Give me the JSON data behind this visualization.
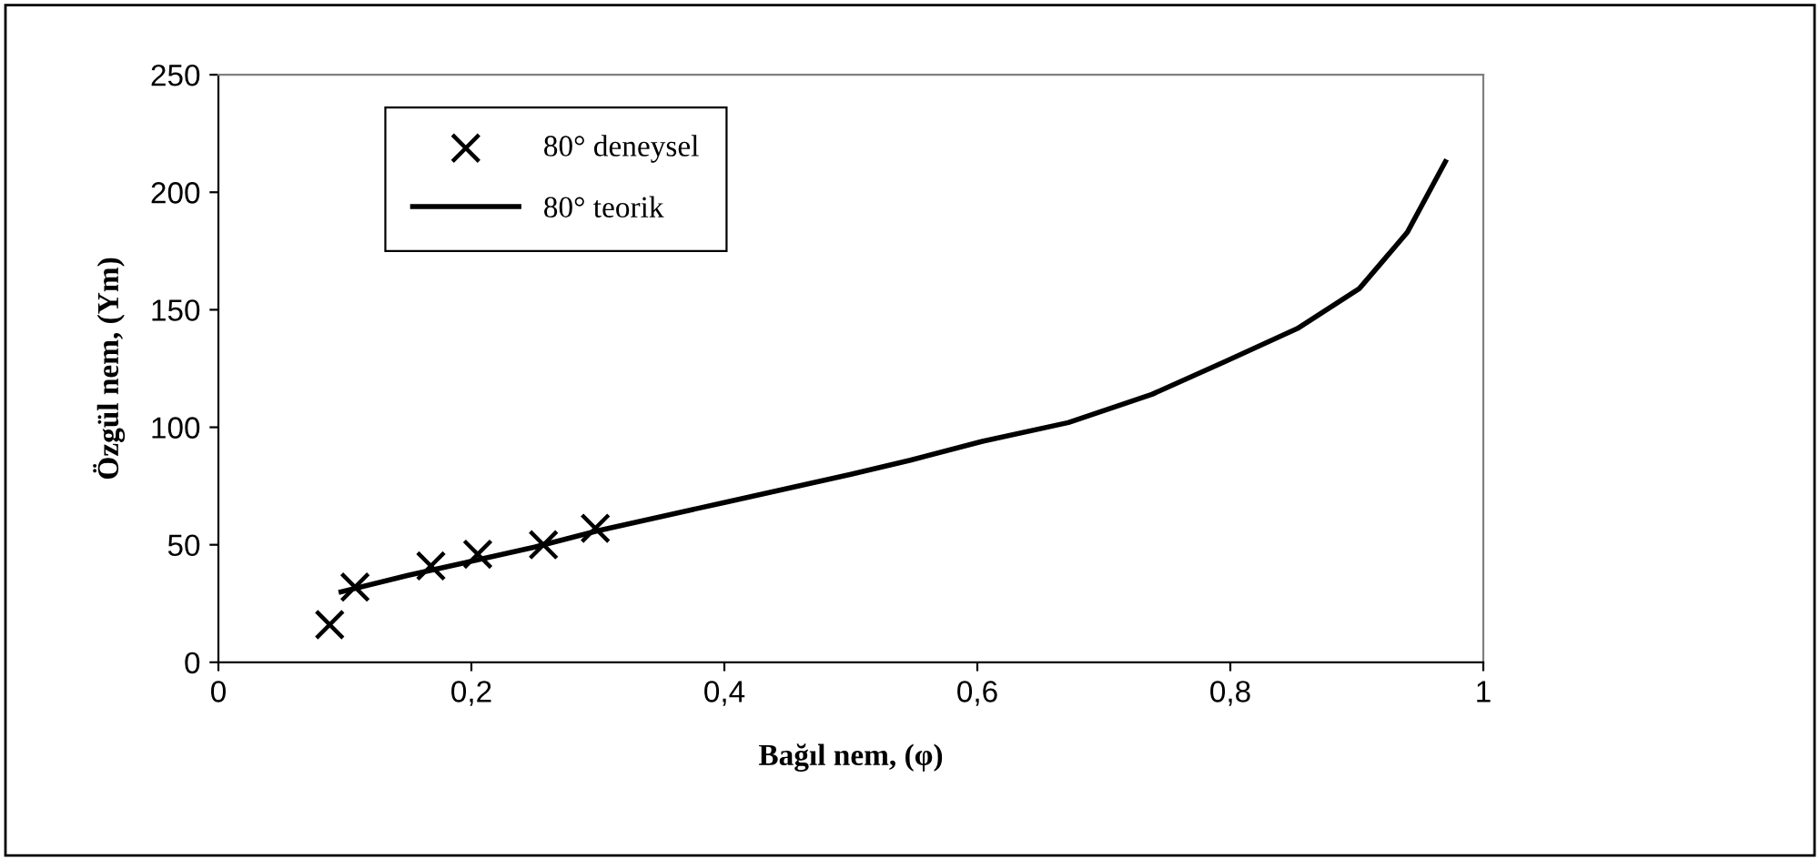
{
  "chart_data": {
    "type": "scatter",
    "xlabel": "Bağıl nem, (φ)",
    "ylabel": "Özgül nem, (Ym)",
    "xlim": [
      0,
      1
    ],
    "ylim": [
      0,
      250
    ],
    "xticks": [
      0,
      {
        "value": 0.2,
        "label": "0,2"
      },
      {
        "value": 0.4,
        "label": "0,4"
      },
      {
        "value": 0.6,
        "label": "0,6"
      },
      {
        "value": 0.8,
        "label": "0,8"
      },
      1
    ],
    "yticks": [
      0,
      50,
      100,
      150,
      200,
      250
    ],
    "grid": false,
    "legend": "top left",
    "series": [
      {
        "name": "80° deneysel",
        "marker": "cross",
        "color": "#000000",
        "x": [
          0.088,
          0.108,
          0.168,
          0.205,
          0.257,
          0.298
        ],
        "values": [
          16,
          32,
          41,
          46,
          50,
          57
        ]
      },
      {
        "name": "80° teorik",
        "type": "line",
        "marker": "none",
        "line_style": "solid",
        "color": "#000000",
        "x": [
          0.097,
          0.15,
          0.2,
          0.25,
          0.3,
          0.35,
          0.4,
          0.45,
          0.5,
          0.547,
          0.604,
          0.672,
          0.738,
          0.796,
          0.853,
          0.902,
          0.94,
          0.97
        ],
        "values": [
          30,
          37,
          43,
          49,
          56,
          62,
          68,
          74,
          80,
          86,
          94,
          102,
          114,
          128,
          142,
          159,
          183,
          213
        ]
      }
    ]
  }
}
